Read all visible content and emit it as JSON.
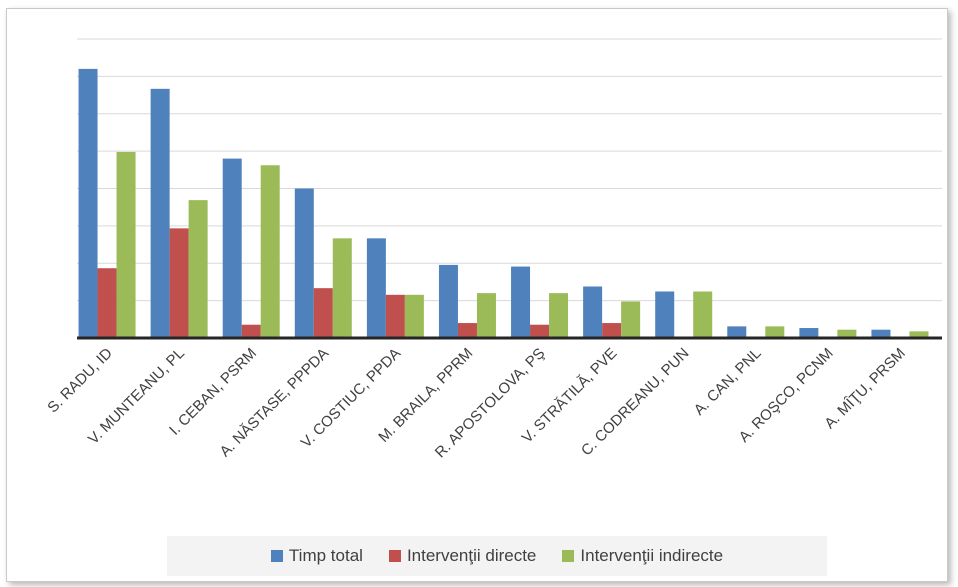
{
  "chart_data": {
    "type": "bar",
    "title": "",
    "xlabel": "",
    "ylabel": "",
    "categories": [
      "S. RADU, ID",
      "V. MUNTEANU, PL",
      "I. CEBAN, PSRM",
      "A. NĂSTASE, PPPDA",
      "V. COSTIUC, PPDA",
      "M. BRAILA, PPRM",
      "R. APOSTOLOVA, PŞ",
      "V. STRĂTILĂ, PVE",
      "C. CODREANU, PUN",
      "A. CAN, PNL",
      "A. ROŞCO, PCNM",
      "A. MÎŢU, PRSM"
    ],
    "series": [
      {
        "name": "Timp total",
        "color": "#4f81bd",
        "values": [
          8.1,
          7.5,
          5.4,
          4.5,
          3.0,
          2.2,
          2.15,
          1.55,
          1.4,
          0.35,
          0.3,
          0.25
        ]
      },
      {
        "name": "Intervenţii directe",
        "color": "#c0504d",
        "values": [
          2.1,
          3.3,
          0.4,
          1.5,
          1.3,
          0.45,
          0.4,
          0.45,
          0,
          0,
          0,
          0
        ]
      },
      {
        "name": "Intervenţii indirecte",
        "color": "#9bbb59",
        "values": [
          5.6,
          4.15,
          5.2,
          3.0,
          1.3,
          1.35,
          1.35,
          1.1,
          1.4,
          0.35,
          0.25,
          0.2
        ]
      }
    ],
    "ylim": [
      0,
      9
    ],
    "y_gridlines": 8,
    "y_tick_labels_shown": false,
    "grid": true,
    "legend": "bottom"
  }
}
